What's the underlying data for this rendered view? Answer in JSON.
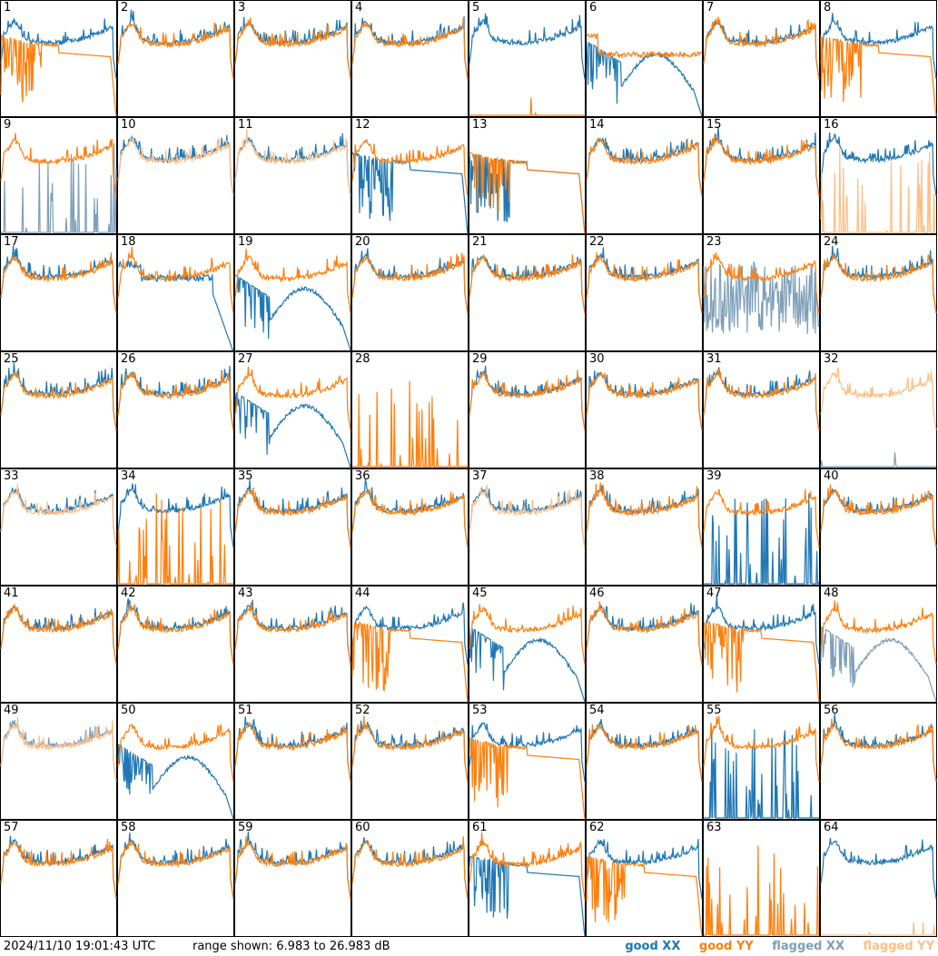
{
  "footer": {
    "timestamp": "2024/11/10 19:01:43 UTC",
    "range": "range shown: 6.983 to 26.983 dB"
  },
  "legend": [
    {
      "label": "good XX",
      "color": "#1f77b4"
    },
    {
      "label": "good YY",
      "color": "#ff7f0e"
    },
    {
      "label": "flagged XX",
      "color": "#7f9fb8"
    },
    {
      "label": "flagged YY",
      "color": "#ffbe86"
    }
  ],
  "chart_data": {
    "type": "line",
    "ylim": [
      6.983,
      26.983
    ],
    "yunit": "dB",
    "grid": "8x8 small multiples",
    "panels": [
      {
        "label": "1",
        "xx": {
          "shape": "normal",
          "flag": false
        },
        "yy": {
          "shape": "decay",
          "flag": false
        }
      },
      {
        "label": "2",
        "xx": {
          "shape": "normal",
          "flag": false
        },
        "yy": {
          "shape": "normal",
          "flag": false
        }
      },
      {
        "label": "3",
        "xx": {
          "shape": "normal",
          "flag": false
        },
        "yy": {
          "shape": "normal",
          "flag": false
        }
      },
      {
        "label": "4",
        "xx": {
          "shape": "normal",
          "flag": false
        },
        "yy": {
          "shape": "normal",
          "flag": false
        }
      },
      {
        "label": "5",
        "xx": {
          "shape": "normal",
          "flag": false
        },
        "yy": {
          "shape": "bottom",
          "flag": false
        }
      },
      {
        "label": "6",
        "xx": {
          "shape": "dipbump",
          "flag": false
        },
        "yy": {
          "shape": "flat",
          "flag": false
        }
      },
      {
        "label": "7",
        "xx": {
          "shape": "normal",
          "flag": false
        },
        "yy": {
          "shape": "normal",
          "flag": false
        }
      },
      {
        "label": "8",
        "xx": {
          "shape": "normal",
          "flag": false
        },
        "yy": {
          "shape": "decay",
          "flag": false
        }
      },
      {
        "label": "9",
        "xx": {
          "shape": "spikes",
          "flag": true
        },
        "yy": {
          "shape": "normal",
          "flag": false
        }
      },
      {
        "label": "10",
        "xx": {
          "shape": "normal",
          "flag": false
        },
        "yy": {
          "shape": "normal",
          "flag": true
        }
      },
      {
        "label": "11",
        "xx": {
          "shape": "normal",
          "flag": false
        },
        "yy": {
          "shape": "normal",
          "flag": true
        }
      },
      {
        "label": "12",
        "xx": {
          "shape": "decay",
          "flag": false
        },
        "yy": {
          "shape": "normal",
          "flag": false
        }
      },
      {
        "label": "13",
        "xx": {
          "shape": "decay",
          "flag": false
        },
        "yy": {
          "shape": "decay",
          "flag": false
        }
      },
      {
        "label": "14",
        "xx": {
          "shape": "normal",
          "flag": false
        },
        "yy": {
          "shape": "normal",
          "flag": false
        }
      },
      {
        "label": "15",
        "xx": {
          "shape": "normal",
          "flag": false
        },
        "yy": {
          "shape": "normal",
          "flag": false
        }
      },
      {
        "label": "16",
        "xx": {
          "shape": "normal",
          "flag": false
        },
        "yy": {
          "shape": "spikes",
          "flag": true
        }
      },
      {
        "label": "17",
        "xx": {
          "shape": "normal",
          "flag": false
        },
        "yy": {
          "shape": "normal",
          "flag": false
        }
      },
      {
        "label": "18",
        "xx": {
          "shape": "drop",
          "flag": false
        },
        "yy": {
          "shape": "normal",
          "flag": false
        }
      },
      {
        "label": "19",
        "xx": {
          "shape": "dipbump",
          "flag": false
        },
        "yy": {
          "shape": "normal",
          "flag": false
        }
      },
      {
        "label": "20",
        "xx": {
          "shape": "normal",
          "flag": false
        },
        "yy": {
          "shape": "normal",
          "flag": false
        }
      },
      {
        "label": "21",
        "xx": {
          "shape": "normal",
          "flag": false
        },
        "yy": {
          "shape": "normal",
          "flag": false
        }
      },
      {
        "label": "22",
        "xx": {
          "shape": "normal",
          "flag": false
        },
        "yy": {
          "shape": "normal",
          "flag": false
        }
      },
      {
        "label": "23",
        "xx": {
          "shape": "noise",
          "flag": true
        },
        "yy": {
          "shape": "normal",
          "flag": false
        }
      },
      {
        "label": "24",
        "xx": {
          "shape": "normal",
          "flag": false
        },
        "yy": {
          "shape": "normal",
          "flag": false
        }
      },
      {
        "label": "25",
        "xx": {
          "shape": "normal",
          "flag": false
        },
        "yy": {
          "shape": "normal",
          "flag": false
        }
      },
      {
        "label": "26",
        "xx": {
          "shape": "normal",
          "flag": false
        },
        "yy": {
          "shape": "normal",
          "flag": false
        }
      },
      {
        "label": "27",
        "xx": {
          "shape": "dipbump",
          "flag": false
        },
        "yy": {
          "shape": "normal",
          "flag": false
        }
      },
      {
        "label": "28",
        "xx": {
          "shape": "none",
          "flag": false
        },
        "yy": {
          "shape": "spikes",
          "flag": false
        }
      },
      {
        "label": "29",
        "xx": {
          "shape": "normal",
          "flag": false
        },
        "yy": {
          "shape": "normal",
          "flag": false
        }
      },
      {
        "label": "30",
        "xx": {
          "shape": "normal",
          "flag": false
        },
        "yy": {
          "shape": "normal",
          "flag": false
        }
      },
      {
        "label": "31",
        "xx": {
          "shape": "normal",
          "flag": false
        },
        "yy": {
          "shape": "normal",
          "flag": false
        }
      },
      {
        "label": "32",
        "xx": {
          "shape": "bottom",
          "flag": true
        },
        "yy": {
          "shape": "normal",
          "flag": true
        }
      },
      {
        "label": "33",
        "xx": {
          "shape": "normal",
          "flag": false
        },
        "yy": {
          "shape": "normal",
          "flag": true
        }
      },
      {
        "label": "34",
        "xx": {
          "shape": "normal",
          "flag": false
        },
        "yy": {
          "shape": "spikes",
          "flag": false
        }
      },
      {
        "label": "35",
        "xx": {
          "shape": "normal",
          "flag": false
        },
        "yy": {
          "shape": "normal",
          "flag": false
        }
      },
      {
        "label": "36",
        "xx": {
          "shape": "normal",
          "flag": false
        },
        "yy": {
          "shape": "normal",
          "flag": false
        }
      },
      {
        "label": "37",
        "xx": {
          "shape": "normal",
          "flag": false
        },
        "yy": {
          "shape": "normal",
          "flag": true
        }
      },
      {
        "label": "38",
        "xx": {
          "shape": "normal",
          "flag": false
        },
        "yy": {
          "shape": "normal",
          "flag": false
        }
      },
      {
        "label": "39",
        "xx": {
          "shape": "spikes",
          "flag": false
        },
        "yy": {
          "shape": "normal",
          "flag": false
        }
      },
      {
        "label": "40",
        "xx": {
          "shape": "normal",
          "flag": false
        },
        "yy": {
          "shape": "normal",
          "flag": false
        }
      },
      {
        "label": "41",
        "xx": {
          "shape": "normal",
          "flag": false
        },
        "yy": {
          "shape": "normal",
          "flag": false
        }
      },
      {
        "label": "42",
        "xx": {
          "shape": "normal",
          "flag": false
        },
        "yy": {
          "shape": "normal",
          "flag": false
        }
      },
      {
        "label": "43",
        "xx": {
          "shape": "normal",
          "flag": false
        },
        "yy": {
          "shape": "normal",
          "flag": false
        }
      },
      {
        "label": "44",
        "xx": {
          "shape": "normal",
          "flag": false
        },
        "yy": {
          "shape": "decay",
          "flag": false
        }
      },
      {
        "label": "45",
        "xx": {
          "shape": "dipbump",
          "flag": false
        },
        "yy": {
          "shape": "normal",
          "flag": false
        }
      },
      {
        "label": "46",
        "xx": {
          "shape": "normal",
          "flag": false
        },
        "yy": {
          "shape": "normal",
          "flag": false
        }
      },
      {
        "label": "47",
        "xx": {
          "shape": "normal",
          "flag": false
        },
        "yy": {
          "shape": "decay",
          "flag": false
        }
      },
      {
        "label": "48",
        "xx": {
          "shape": "dipbump",
          "flag": true
        },
        "yy": {
          "shape": "normal",
          "flag": false
        }
      },
      {
        "label": "49",
        "xx": {
          "shape": "normal",
          "flag": true
        },
        "yy": {
          "shape": "normal",
          "flag": true
        }
      },
      {
        "label": "50",
        "xx": {
          "shape": "dipbump",
          "flag": false
        },
        "yy": {
          "shape": "normal",
          "flag": false
        }
      },
      {
        "label": "51",
        "xx": {
          "shape": "normal",
          "flag": false
        },
        "yy": {
          "shape": "normal",
          "flag": false
        }
      },
      {
        "label": "52",
        "xx": {
          "shape": "normal",
          "flag": false
        },
        "yy": {
          "shape": "normal",
          "flag": false
        }
      },
      {
        "label": "53",
        "xx": {
          "shape": "normal",
          "flag": false
        },
        "yy": {
          "shape": "decay",
          "flag": false
        }
      },
      {
        "label": "54",
        "xx": {
          "shape": "normal",
          "flag": false
        },
        "yy": {
          "shape": "normal",
          "flag": false
        }
      },
      {
        "label": "55",
        "xx": {
          "shape": "spikes",
          "flag": false
        },
        "yy": {
          "shape": "normal",
          "flag": false
        }
      },
      {
        "label": "56",
        "xx": {
          "shape": "normal",
          "flag": false
        },
        "yy": {
          "shape": "normal",
          "flag": false
        }
      },
      {
        "label": "57",
        "xx": {
          "shape": "normal",
          "flag": false
        },
        "yy": {
          "shape": "normal",
          "flag": false
        }
      },
      {
        "label": "58",
        "xx": {
          "shape": "normal",
          "flag": false
        },
        "yy": {
          "shape": "normal",
          "flag": false
        }
      },
      {
        "label": "59",
        "xx": {
          "shape": "normal",
          "flag": false
        },
        "yy": {
          "shape": "normal",
          "flag": false
        }
      },
      {
        "label": "60",
        "xx": {
          "shape": "normal",
          "flag": false
        },
        "yy": {
          "shape": "normal",
          "flag": false
        }
      },
      {
        "label": "61",
        "xx": {
          "shape": "decay",
          "flag": false
        },
        "yy": {
          "shape": "normal",
          "flag": false
        }
      },
      {
        "label": "62",
        "xx": {
          "shape": "normal",
          "flag": false
        },
        "yy": {
          "shape": "decay",
          "flag": false
        }
      },
      {
        "label": "63",
        "xx": {
          "shape": "none",
          "flag": false
        },
        "yy": {
          "shape": "spikes",
          "flag": false
        }
      },
      {
        "label": "64",
        "xx": {
          "shape": "normal",
          "flag": false
        },
        "yy": {
          "shape": "bottom",
          "flag": true
        }
      }
    ]
  }
}
